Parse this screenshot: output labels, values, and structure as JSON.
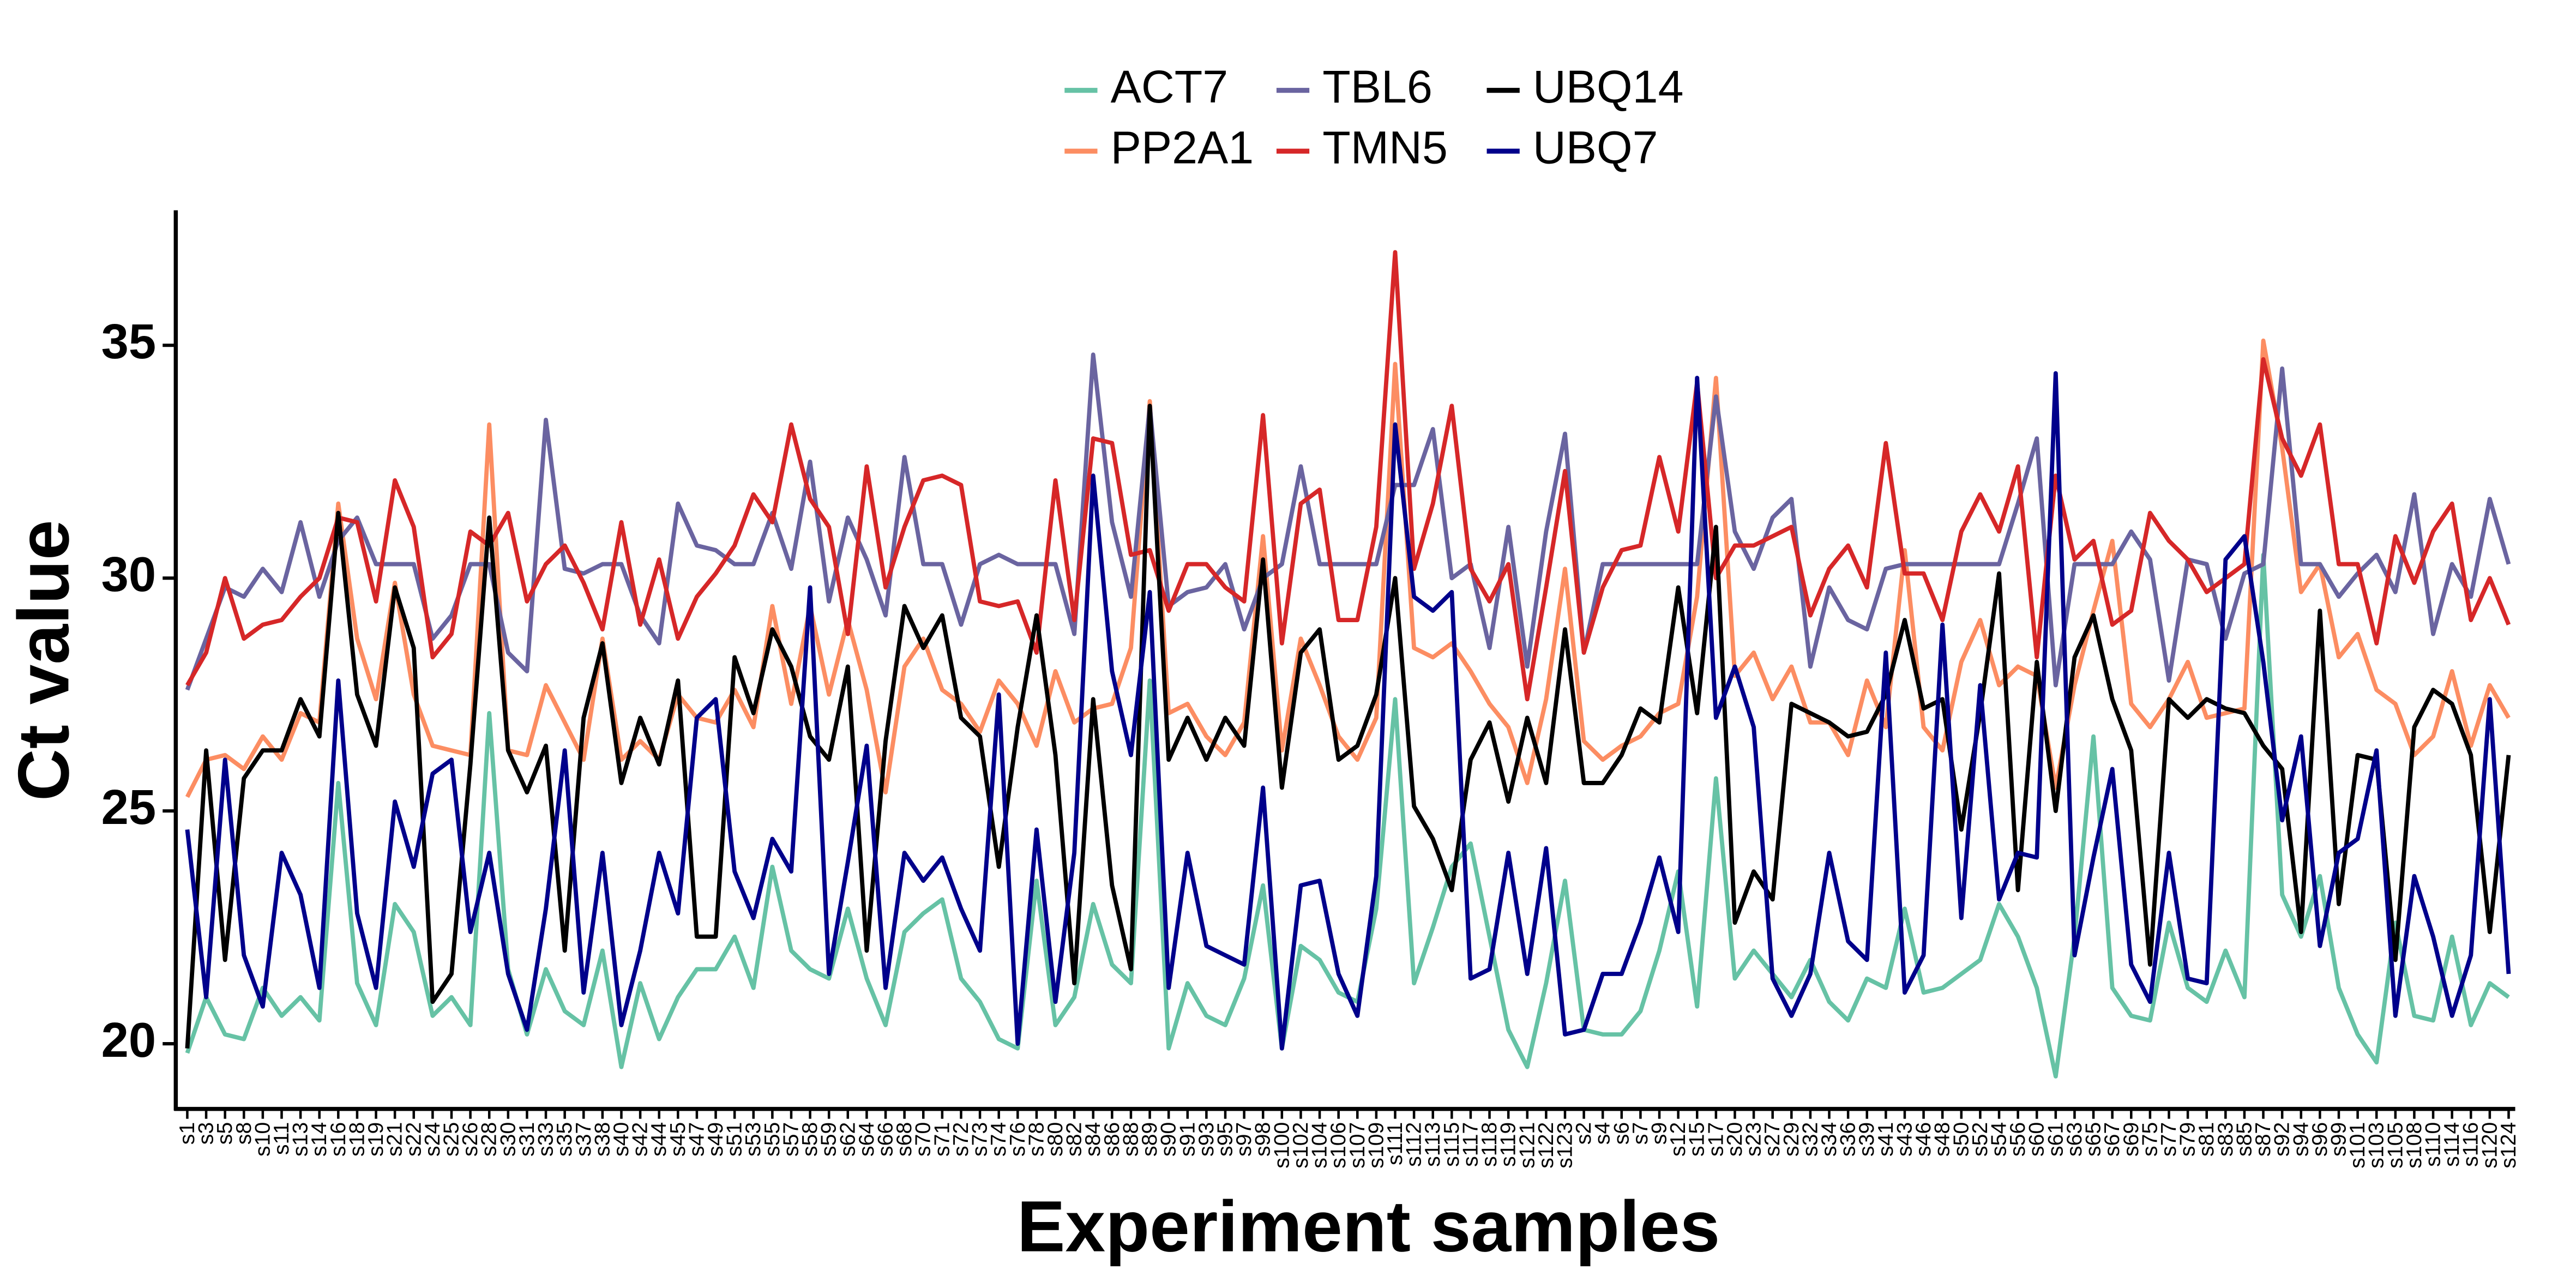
{
  "chart_data": {
    "type": "line",
    "x_label": "Experiment samples",
    "y_label": "Ct value",
    "legend": "top",
    "ylim": [
      18.6,
      37.9
    ],
    "yticks": [
      20,
      25,
      30,
      35
    ],
    "categories": [
      "s1",
      "s3",
      "s5",
      "s8",
      "s10",
      "s11",
      "s13",
      "s14",
      "s16",
      "s18",
      "s19",
      "s21",
      "s22",
      "s24",
      "s25",
      "s26",
      "s28",
      "s30",
      "s31",
      "s33",
      "s35",
      "s37",
      "s38",
      "s40",
      "s42",
      "s44",
      "s45",
      "s47",
      "s49",
      "s51",
      "s53",
      "s55",
      "s57",
      "s58",
      "s59",
      "s62",
      "s64",
      "s66",
      "s68",
      "s70",
      "s71",
      "s72",
      "s73",
      "s74",
      "s76",
      "s78",
      "s80",
      "s82",
      "s84",
      "s86",
      "s88",
      "s89",
      "s90",
      "s91",
      "s93",
      "s95",
      "s97",
      "s98",
      "s100",
      "s102",
      "s104",
      "s106",
      "s107",
      "s109",
      "s111",
      "s112",
      "s113",
      "s115",
      "s117",
      "s118",
      "s119",
      "s121",
      "s122",
      "s123",
      "s2",
      "s4",
      "s6",
      "s7",
      "s9",
      "s12",
      "s15",
      "s17",
      "s20",
      "s23",
      "s27",
      "s29",
      "s32",
      "s34",
      "s36",
      "s39",
      "s41",
      "s43",
      "s46",
      "s48",
      "s50",
      "s52",
      "s54",
      "s56",
      "s60",
      "s61",
      "s63",
      "s65",
      "s67",
      "s69",
      "s75",
      "s77",
      "s79",
      "s81",
      "s83",
      "s85",
      "s87",
      "s92",
      "s94",
      "s96",
      "s99",
      "s101",
      "s103",
      "s105",
      "s108",
      "s110",
      "s114",
      "s116",
      "s120",
      "s124"
    ],
    "series": [
      {
        "name": "ACT7",
        "color": "#66c2a5",
        "values": [
          19.8,
          21,
          20.2,
          20.1,
          21.2,
          20.6,
          21,
          20.5,
          25.6,
          21.3,
          20.4,
          23,
          22.4,
          20.6,
          21,
          20.4,
          27.1,
          21.6,
          20.2,
          21.6,
          20.7,
          20.4,
          22,
          19.5,
          21.3,
          20.1,
          21,
          21.6,
          21.6,
          22.3,
          21.2,
          23.8,
          22,
          21.6,
          21.4,
          22.9,
          21.4,
          20.4,
          22.4,
          22.8,
          23.1,
          21.4,
          20.9,
          20.1,
          19.9,
          23.5,
          20.4,
          21,
          23,
          21.7,
          21.3,
          27.8,
          19.9,
          21.3,
          20.6,
          20.4,
          21.4,
          23.4,
          19.9,
          22.1,
          21.8,
          21.1,
          20.9,
          22.9,
          27.4,
          21.3,
          22.5,
          23.8,
          24.3,
          22.3,
          20.3,
          19.5,
          21.3,
          23.5,
          20.3,
          20.2,
          20.2,
          20.7,
          22,
          23.7,
          20.8,
          25.7,
          21.4,
          22,
          21.5,
          21,
          21.8,
          20.9,
          20.5,
          21.4,
          21.2,
          22.9,
          21.1,
          21.2,
          21.5,
          21.8,
          23,
          22.3,
          21.2,
          19.3,
          22.3,
          26.6,
          21.2,
          20.6,
          20.5,
          22.6,
          21.2,
          20.9,
          22,
          21,
          30.5,
          23.2,
          22.3,
          23.6,
          21.2,
          20.2,
          19.6,
          22.6,
          20.6,
          20.5,
          22.3,
          20.4,
          21.3,
          21
        ]
      },
      {
        "name": "PP2A1",
        "color": "#fc8d62",
        "values": [
          25.3,
          26.1,
          26.2,
          25.9,
          26.6,
          26.1,
          27.1,
          26.9,
          31.6,
          28.7,
          27.4,
          29.9,
          27.5,
          26.4,
          26.3,
          26.2,
          33.3,
          26.3,
          26.2,
          27.7,
          26.9,
          26.1,
          28.7,
          26.1,
          26.5,
          26.1,
          27.5,
          27,
          26.9,
          27.6,
          26.8,
          29.4,
          27.3,
          29.4,
          27.5,
          29.1,
          27.6,
          25.4,
          28.1,
          28.7,
          27.6,
          27.3,
          26.7,
          27.8,
          27.3,
          26.4,
          28,
          26.9,
          27.2,
          27.3,
          28.5,
          33.8,
          27.1,
          27.3,
          26.6,
          26.2,
          26.9,
          30.9,
          26.3,
          28.7,
          27.7,
          26.6,
          26.1,
          27,
          34.6,
          28.5,
          28.3,
          28.6,
          28,
          27.3,
          26.8,
          25.6,
          27.4,
          30.2,
          26.5,
          26.1,
          26.4,
          26.6,
          27.1,
          27.3,
          29.6,
          34.3,
          27.9,
          28.4,
          27.4,
          28.1,
          26.9,
          26.9,
          26.2,
          27.8,
          26.8,
          30.6,
          26.8,
          26.3,
          28.2,
          29.1,
          27.7,
          28.1,
          27.9,
          25.5,
          27.7,
          29.3,
          30.8,
          27.3,
          26.8,
          27.4,
          28.2,
          27,
          27.1,
          27.2,
          35.1,
          32.8,
          29.7,
          30.3,
          28.3,
          28.8,
          27.6,
          27.3,
          26.2,
          26.6,
          28,
          26.4,
          27.7,
          27
        ]
      },
      {
        "name": "TBL6",
        "color": "#6a64a0",
        "values": [
          27.6,
          28.7,
          29.8,
          29.6,
          30.2,
          29.7,
          31.2,
          29.6,
          30.8,
          31.3,
          30.3,
          30.3,
          30.3,
          28.7,
          29.2,
          30.3,
          30.3,
          28.4,
          28,
          33.4,
          30.2,
          30.1,
          30.3,
          30.3,
          29.2,
          28.6,
          31.6,
          30.7,
          30.6,
          30.3,
          30.3,
          31.4,
          30.2,
          32.5,
          29.5,
          31.3,
          30.4,
          29.2,
          32.6,
          30.3,
          30.3,
          29,
          30.3,
          30.5,
          30.3,
          30.3,
          30.3,
          28.8,
          34.8,
          31.2,
          29.6,
          33.7,
          29.4,
          29.7,
          29.8,
          30.3,
          28.9,
          30,
          30.3,
          32.4,
          30.3,
          30.3,
          30.3,
          30.3,
          32,
          32,
          33.2,
          30,
          30.3,
          28.5,
          31.1,
          28.1,
          31,
          33.1,
          28.4,
          30.3,
          30.3,
          30.3,
          30.3,
          30.3,
          30.3,
          33.9,
          31,
          30.2,
          31.3,
          31.7,
          28.1,
          29.8,
          29.1,
          28.9,
          30.2,
          30.3,
          30.3,
          30.3,
          30.3,
          30.3,
          30.3,
          31.6,
          33,
          27.7,
          30.3,
          30.3,
          30.3,
          31,
          30.4,
          27.8,
          30.4,
          30.3,
          28.7,
          30.1,
          30.3,
          34.5,
          30.3,
          30.3,
          29.6,
          30.1,
          30.5,
          29.7,
          31.8,
          28.8,
          30.3,
          29.6,
          31.7,
          30.3
        ]
      },
      {
        "name": "TMN5",
        "color": "#d62728",
        "values": [
          27.7,
          28.4,
          30,
          28.7,
          29,
          29.1,
          29.6,
          30,
          31.3,
          31.2,
          29.5,
          32.1,
          31.1,
          28.3,
          28.8,
          31,
          30.7,
          31.4,
          29.5,
          30.3,
          30.7,
          29.9,
          28.9,
          31.2,
          29,
          30.4,
          28.7,
          29.6,
          30.1,
          30.7,
          31.8,
          31.2,
          33.3,
          31.7,
          31.1,
          28.8,
          32.4,
          29.8,
          31.1,
          32.1,
          32.2,
          32,
          29.5,
          29.4,
          29.5,
          28.4,
          32.1,
          29.1,
          33,
          32.9,
          30.5,
          30.6,
          29.3,
          30.3,
          30.3,
          29.8,
          29.5,
          33.5,
          28.6,
          31.6,
          31.9,
          29.1,
          29.1,
          31.1,
          37,
          30.2,
          31.6,
          33.7,
          30.2,
          29.5,
          30.3,
          27.4,
          29.8,
          32.3,
          28.4,
          29.8,
          30.6,
          30.7,
          32.6,
          31,
          34.2,
          30,
          30.7,
          30.7,
          30.9,
          31.1,
          29.2,
          30.2,
          30.7,
          29.8,
          32.9,
          30.1,
          30.1,
          29.1,
          31,
          31.8,
          31,
          32.4,
          28.3,
          32.2,
          30.4,
          30.8,
          29,
          29.3,
          31.4,
          30.8,
          30.4,
          29.7,
          30,
          30.3,
          34.7,
          33,
          32.2,
          33.3,
          30.3,
          30.3,
          28.6,
          30.9,
          29.9,
          31,
          31.6,
          29.1,
          30,
          29
        ]
      },
      {
        "name": "UBQ14",
        "color": "#000000",
        "values": [
          19.9,
          26.3,
          21.8,
          25.7,
          26.3,
          26.3,
          27.4,
          26.6,
          31.4,
          27.5,
          26.4,
          29.8,
          28.5,
          20.9,
          21.5,
          26,
          31.3,
          26.3,
          25.4,
          26.4,
          22,
          27,
          28.6,
          25.6,
          27,
          26,
          27.8,
          22.3,
          22.3,
          28.3,
          27.1,
          28.9,
          28.1,
          26.6,
          26.1,
          28.1,
          22,
          26.5,
          29.4,
          28.5,
          29.2,
          27,
          26.6,
          23.8,
          26.8,
          29.2,
          26.2,
          21.3,
          27.4,
          23.4,
          21.6,
          33.7,
          26.1,
          27,
          26.1,
          27,
          26.4,
          30.4,
          25.5,
          28.4,
          28.9,
          26.1,
          26.4,
          27.5,
          30,
          25.1,
          24.4,
          23.3,
          26.1,
          26.9,
          25.2,
          27,
          25.6,
          28.9,
          25.6,
          25.6,
          26.2,
          27.2,
          26.9,
          29.8,
          27.1,
          31.1,
          22.6,
          23.7,
          23.1,
          27.3,
          27.1,
          26.9,
          26.6,
          26.7,
          27.5,
          29.1,
          27.2,
          27.4,
          24.6,
          27.1,
          30.1,
          23.3,
          28.2,
          25,
          28.3,
          29.2,
          27.4,
          26.3,
          21.7,
          27.4,
          27,
          27.4,
          27.2,
          27.1,
          26.4,
          25.9,
          22.4,
          29.3,
          23,
          26.2,
          26.1,
          21.8,
          26.8,
          27.6,
          27.3,
          26.2,
          22.4,
          26.2
        ]
      },
      {
        "name": "UBQ7",
        "color": "#00008b",
        "values": [
          24.6,
          21,
          26.1,
          21.9,
          20.8,
          24.1,
          23.2,
          21.2,
          27.8,
          22.8,
          21.2,
          25.2,
          23.8,
          25.8,
          26.1,
          22.4,
          24.1,
          21.5,
          20.3,
          22.9,
          26.3,
          21.1,
          24.1,
          20.4,
          22,
          24.1,
          22.8,
          27,
          27.4,
          23.7,
          22.7,
          24.4,
          23.7,
          29.8,
          21.5,
          23.9,
          26.4,
          21.2,
          24.1,
          23.5,
          24,
          22.9,
          22,
          27.5,
          20,
          24.6,
          20.9,
          24.1,
          32.2,
          28,
          26.2,
          29.7,
          21.2,
          24.1,
          22.1,
          21.9,
          21.7,
          25.5,
          19.9,
          23.4,
          23.5,
          21.5,
          20.6,
          23.6,
          33.3,
          29.6,
          29.3,
          29.7,
          21.4,
          21.6,
          24.1,
          21.5,
          24.2,
          20.2,
          20.3,
          21.5,
          21.5,
          22.6,
          24,
          22.4,
          34.3,
          27,
          28.1,
          26.8,
          21.4,
          20.6,
          21.5,
          24.1,
          22.2,
          21.8,
          28.4,
          21.1,
          21.9,
          29,
          22.7,
          27.7,
          23.1,
          24.1,
          24,
          34.4,
          21.9,
          24,
          25.9,
          21.7,
          20.9,
          24.1,
          21.4,
          21.3,
          30.4,
          30.9,
          28.2,
          24.8,
          26.6,
          22.1,
          24.1,
          24.4,
          26.3,
          20.6,
          23.6,
          22.3,
          20.6,
          21.9,
          27.4,
          21.5
        ]
      }
    ]
  }
}
